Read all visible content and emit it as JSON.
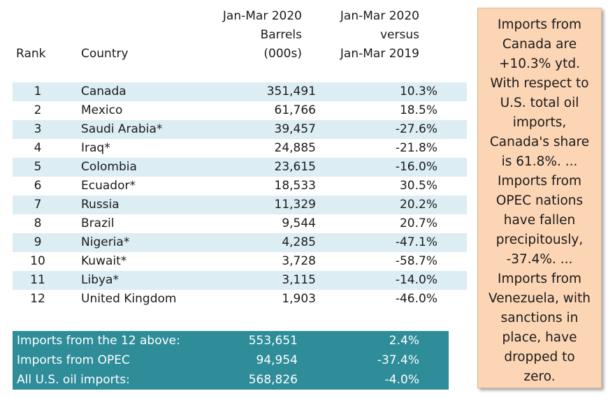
{
  "headers": {
    "rank": "Rank",
    "country": "Country",
    "barrels": [
      "Jan-Mar 2020",
      "Barrels",
      "(000s)"
    ],
    "change": [
      "Jan-Mar 2020",
      "versus",
      "Jan-Mar 2019"
    ]
  },
  "rows": [
    {
      "rank": "1",
      "country": "Canada",
      "barrels": "351,491",
      "change": "10.3%"
    },
    {
      "rank": "2",
      "country": "Mexico",
      "barrels": "61,766",
      "change": "18.5%"
    },
    {
      "rank": "3",
      "country": "Saudi Arabia*",
      "barrels": "39,457",
      "change": "-27.6%"
    },
    {
      "rank": "4",
      "country": "Iraq*",
      "barrels": "24,885",
      "change": "-21.8%"
    },
    {
      "rank": "5",
      "country": "Colombia",
      "barrels": "23,615",
      "change": "-16.0%"
    },
    {
      "rank": "6",
      "country": "Ecuador*",
      "barrels": "18,533",
      "change": "30.5%"
    },
    {
      "rank": "7",
      "country": "Russia",
      "barrels": "11,329",
      "change": "20.2%"
    },
    {
      "rank": "8",
      "country": "Brazil",
      "barrels": "9,544",
      "change": "20.7%"
    },
    {
      "rank": "9",
      "country": "Nigeria*",
      "barrels": "4,285",
      "change": "-47.1%"
    },
    {
      "rank": "10",
      "country": "Kuwait*",
      "barrels": "3,728",
      "change": "-58.7%"
    },
    {
      "rank": "11",
      "country": "Libya*",
      "barrels": "3,115",
      "change": "-14.0%"
    },
    {
      "rank": "12",
      "country": "United Kingdom",
      "barrels": "1,903",
      "change": "-46.0%"
    }
  ],
  "summary": [
    {
      "label": "Imports from the 12 above:",
      "barrels": "553,651",
      "change": "2.4%"
    },
    {
      "label": "Imports from OPEC",
      "barrels": "94,954",
      "change": "-37.4%"
    },
    {
      "label": "All U.S. oil imports:",
      "barrels": "568,826",
      "change": "-4.0%"
    }
  ],
  "note_lines": [
    "Imports from",
    "Canada are",
    "+10.3% ytd.",
    "With respect to",
    "U.S. total oil",
    "imports,",
    "Canada's share",
    "is 61.8%. ...",
    "Imports from",
    "OPEC nations",
    "have fallen",
    "precipitously,",
    "-37.4%. ...",
    "Imports from",
    "Venezuela, with",
    "sanctions in",
    "place, have",
    "dropped to",
    "zero."
  ],
  "colors": {
    "stripe": "#dcedf4",
    "summary_bg": "#2e8d99",
    "note_bg": "#fcd5b5"
  }
}
